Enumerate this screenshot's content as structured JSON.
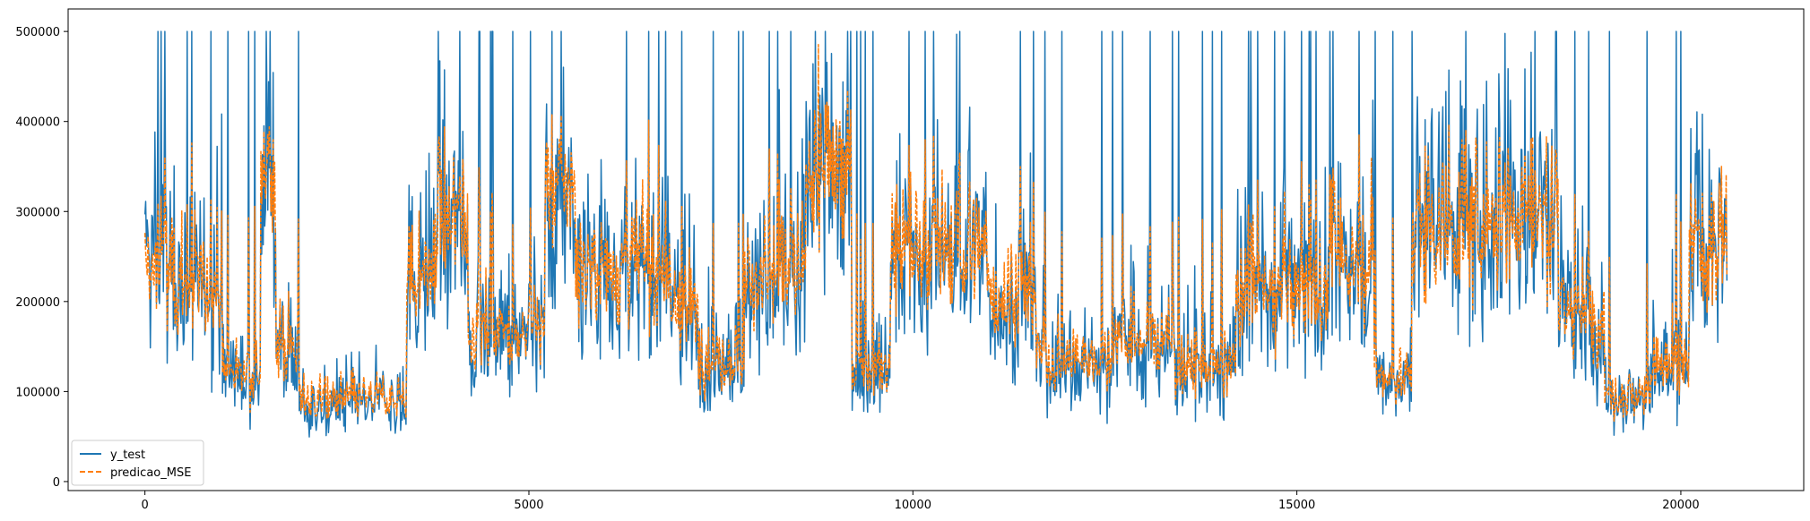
{
  "chart_data": {
    "type": "line",
    "title": "",
    "xlabel": "",
    "ylabel": "",
    "xlim": [
      -1000,
      21600
    ],
    "ylim": [
      -10000,
      525000
    ],
    "x_ticks": [
      0,
      5000,
      10000,
      15000,
      20000
    ],
    "x_tick_labels": [
      "0",
      "5000",
      "10000",
      "15000",
      "20000"
    ],
    "y_ticks": [
      0,
      100000,
      200000,
      300000,
      400000,
      500000
    ],
    "y_tick_labels": [
      "0",
      "100000",
      "200000",
      "300000",
      "400000",
      "500000"
    ],
    "grid": false,
    "legend_position": "lower-left",
    "x_range": [
      0,
      20600
    ],
    "series": [
      {
        "name": "y_test",
        "color": "#1f77b4",
        "style": "solid",
        "segments": [
          {
            "x": [
              0,
              400
            ],
            "level": 230000
          },
          {
            "x": [
              400,
              1000
            ],
            "level": 220000
          },
          {
            "x": [
              1000,
              1500
            ],
            "level": 120000
          },
          {
            "x": [
              1500,
              1700
            ],
            "level": 320000
          },
          {
            "x": [
              1700,
              2000
            ],
            "level": 150000
          },
          {
            "x": [
              2000,
              3400
            ],
            "level": 85000
          },
          {
            "x": [
              3400,
              3800
            ],
            "level": 230000
          },
          {
            "x": [
              3800,
              4200
            ],
            "level": 280000
          },
          {
            "x": [
              4200,
              5200
            ],
            "level": 160000
          },
          {
            "x": [
              5200,
              5600
            ],
            "level": 320000
          },
          {
            "x": [
              5600,
              6800
            ],
            "level": 230000
          },
          {
            "x": [
              6800,
              7200
            ],
            "level": 190000
          },
          {
            "x": [
              7200,
              7800
            ],
            "level": 130000
          },
          {
            "x": [
              7800,
              8600
            ],
            "level": 220000
          },
          {
            "x": [
              8600,
              9200
            ],
            "level": 340000
          },
          {
            "x": [
              9200,
              9700
            ],
            "level": 120000
          },
          {
            "x": [
              9700,
              11000
            ],
            "level": 250000
          },
          {
            "x": [
              11000,
              11600
            ],
            "level": 200000
          },
          {
            "x": [
              11600,
              12600
            ],
            "level": 130000
          },
          {
            "x": [
              12600,
              13400
            ],
            "level": 150000
          },
          {
            "x": [
              13400,
              14200
            ],
            "level": 120000
          },
          {
            "x": [
              14200,
              15400
            ],
            "level": 200000
          },
          {
            "x": [
              15400,
              16000
            ],
            "level": 240000
          },
          {
            "x": [
              16000,
              16500
            ],
            "level": 110000
          },
          {
            "x": [
              16500,
              17400
            ],
            "level": 280000
          },
          {
            "x": [
              17400,
              18400
            ],
            "level": 290000
          },
          {
            "x": [
              18400,
              19000
            ],
            "level": 180000
          },
          {
            "x": [
              19000,
              19600
            ],
            "level": 90000
          },
          {
            "x": [
              19600,
              20100
            ],
            "level": 120000
          },
          {
            "x": [
              20100,
              20600
            ],
            "level": 250000
          }
        ]
      },
      {
        "name": "predicao_MSE",
        "color": "#ff7f0e",
        "style": "dashed",
        "segments": [
          {
            "x": [
              0,
              400
            ],
            "level": 230000
          },
          {
            "x": [
              400,
              1000
            ],
            "level": 220000
          },
          {
            "x": [
              1000,
              1500
            ],
            "level": 125000
          },
          {
            "x": [
              1500,
              1700
            ],
            "level": 320000
          },
          {
            "x": [
              1700,
              2000
            ],
            "level": 150000
          },
          {
            "x": [
              2000,
              3400
            ],
            "level": 95000
          },
          {
            "x": [
              3400,
              3800
            ],
            "level": 230000
          },
          {
            "x": [
              3800,
              4200
            ],
            "level": 290000
          },
          {
            "x": [
              4200,
              5200
            ],
            "level": 170000
          },
          {
            "x": [
              5200,
              5600
            ],
            "level": 330000
          },
          {
            "x": [
              5600,
              6800
            ],
            "level": 240000
          },
          {
            "x": [
              6800,
              7200
            ],
            "level": 190000
          },
          {
            "x": [
              7200,
              7800
            ],
            "level": 140000
          },
          {
            "x": [
              7800,
              8600
            ],
            "level": 230000
          },
          {
            "x": [
              8600,
              9200
            ],
            "level": 350000
          },
          {
            "x": [
              9200,
              9700
            ],
            "level": 130000
          },
          {
            "x": [
              9700,
              11000
            ],
            "level": 260000
          },
          {
            "x": [
              11000,
              11600
            ],
            "level": 210000
          },
          {
            "x": [
              11600,
              12600
            ],
            "level": 140000
          },
          {
            "x": [
              12600,
              13400
            ],
            "level": 160000
          },
          {
            "x": [
              13400,
              14200
            ],
            "level": 130000
          },
          {
            "x": [
              14200,
              15400
            ],
            "level": 210000
          },
          {
            "x": [
              15400,
              16000
            ],
            "level": 250000
          },
          {
            "x": [
              16000,
              16500
            ],
            "level": 120000
          },
          {
            "x": [
              16500,
              17400
            ],
            "level": 280000
          },
          {
            "x": [
              17400,
              18400
            ],
            "level": 300000
          },
          {
            "x": [
              18400,
              19000
            ],
            "level": 190000
          },
          {
            "x": [
              19000,
              19600
            ],
            "level": 100000
          },
          {
            "x": [
              19600,
              20100
            ],
            "level": 130000
          },
          {
            "x": [
              20100,
              20600
            ],
            "level": 260000
          }
        ]
      }
    ]
  }
}
